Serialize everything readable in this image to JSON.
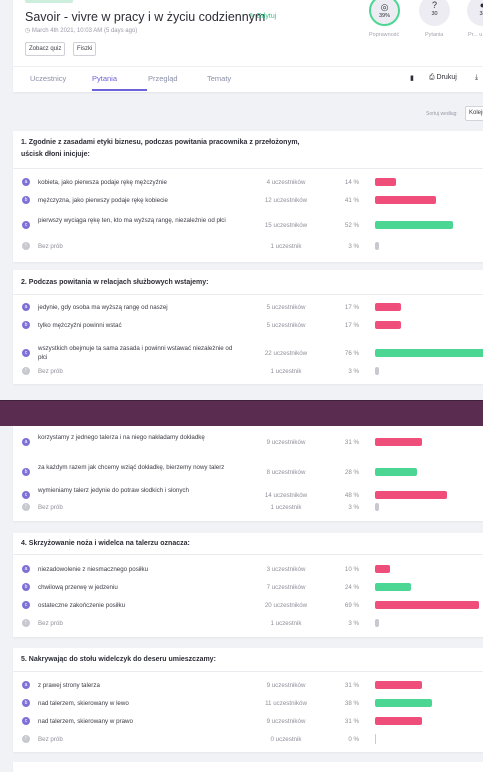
{
  "header": {
    "title": "Savoir - vivre w pracy i w życiu codziennym",
    "edit_label": "✎ Edytuj",
    "date": "March 4th 2021, 10:03 AM (5 days ago)",
    "quiz_button": "Zobacz quiz",
    "flashcards_button": "Fiszki",
    "stats": [
      {
        "icon": "target-icon",
        "glyph": "◎",
        "value": "39%",
        "label": "Poprawność"
      },
      {
        "icon": "question-icon",
        "glyph": "?",
        "value": "30",
        "label": "Pytania"
      },
      {
        "icon": "people-icon",
        "glyph": "●",
        "value": "38",
        "label": "Pr... uczes..."
      }
    ],
    "progress_ring_color": "#4cd694"
  },
  "tabs": [
    {
      "label": "Uczestnicy"
    },
    {
      "label": "Pytania"
    },
    {
      "label": "Przegląd"
    },
    {
      "label": "Tematy"
    }
  ],
  "active_tab": "Pytania",
  "tools": {
    "delete_icon": "trash-icon",
    "print_label": "Drukuj",
    "download_icon": "download-icon"
  },
  "sort": {
    "label": "Sortuj według:",
    "value": "Kolejn"
  },
  "colors": {
    "accent": "#6c63d8",
    "wrong": "#ef4e7b",
    "correct": "#4cd694",
    "none": "#c8c8d0"
  },
  "questions": [
    {
      "title": "1. Zgodnie z zasadami etyki biznesu, podczas powitania pracownika z przełożonym, uścisk dłoni inicjuje:",
      "answers": [
        {
          "letter": "a",
          "text": "kobieta, jako pierwsza podaje rękę mężczyźnie",
          "count": "4 uczestników",
          "pct": "14 %",
          "value": 14,
          "correct": false
        },
        {
          "letter": "b",
          "text": "mężczyzna, jako pierwszy podaje rękę kobiecie",
          "count": "12 uczestników",
          "pct": "41 %",
          "value": 41,
          "correct": false
        },
        {
          "letter": "c",
          "text": "pierwszy wyciąga rękę ten, kto ma wyższą rangę, niezależnie od płci",
          "count": "15 uczestników",
          "pct": "52 %",
          "value": 52,
          "correct": true
        },
        {
          "letter": "!",
          "text": "Bez prób",
          "count": "1 uczestnik",
          "pct": "3 %",
          "value": 3,
          "none": true
        }
      ]
    },
    {
      "title": "2. Podczas powitania w relacjach służbowych wstajemy:",
      "answers": [
        {
          "letter": "a",
          "text": "jedynie, gdy osoba ma wyższą rangę od naszej",
          "count": "5 uczestników",
          "pct": "17 %",
          "value": 17,
          "correct": false
        },
        {
          "letter": "b",
          "text": "tylko mężczyźni powinni wstać",
          "count": "5 uczestników",
          "pct": "17 %",
          "value": 17,
          "correct": false
        },
        {
          "letter": "c",
          "text": "wszystkich obejmuje ta sama zasada i powinni wstawać niezależnie od płci",
          "count": "22 uczestników",
          "pct": "76 %",
          "value": 76,
          "correct": true
        },
        {
          "letter": "!",
          "text": "Bez prób",
          "count": "1 uczestnik",
          "pct": "3 %",
          "value": 3,
          "none": true
        }
      ]
    },
    {
      "title": "",
      "answers": [
        {
          "letter": "a",
          "text": "korzystamy z jednego talerza i na niego nakładamy dokładkę",
          "count": "9 uczestników",
          "pct": "31 %",
          "value": 31,
          "correct": false
        },
        {
          "letter": "b",
          "text": "za każdym razem jak chcemy wziąć dokładkę, bierzemy nowy talerz",
          "count": "8 uczestników",
          "pct": "28 %",
          "value": 28,
          "correct": true
        },
        {
          "letter": "c",
          "text": "wymieniamy talerz jedynie do potraw słodkich i słonych",
          "count": "14 uczestników",
          "pct": "48 %",
          "value": 48,
          "correct": false
        },
        {
          "letter": "!",
          "text": "Bez prób",
          "count": "1 uczestnik",
          "pct": "3 %",
          "value": 3,
          "none": true
        }
      ]
    },
    {
      "title": "4. Skrzyżowanie noża i widelca na talerzu oznacza:",
      "answers": [
        {
          "letter": "a",
          "text": "niezadowolenie z niesmacznego posiłku",
          "count": "3 uczestników",
          "pct": "10 %",
          "value": 10,
          "correct": false
        },
        {
          "letter": "b",
          "text": "chwilową przerwę w jedzeniu",
          "count": "7 uczestników",
          "pct": "24 %",
          "value": 24,
          "correct": true
        },
        {
          "letter": "c",
          "text": "ostateczne zakończenie posiłku",
          "count": "20 uczestników",
          "pct": "69 %",
          "value": 69,
          "correct": false
        },
        {
          "letter": "!",
          "text": "Bez prób",
          "count": "1 uczestnik",
          "pct": "3 %",
          "value": 3,
          "none": true
        }
      ]
    },
    {
      "title": "5. Nakrywając do stołu widelczyk do deseru umieszczamy:",
      "answers": [
        {
          "letter": "a",
          "text": "z prawej strony talerza",
          "count": "9 uczestników",
          "pct": "31 %",
          "value": 31,
          "correct": false
        },
        {
          "letter": "b",
          "text": "nad talerzem, skierowany w lewo",
          "count": "11 uczestników",
          "pct": "38 %",
          "value": 38,
          "correct": true
        },
        {
          "letter": "c",
          "text": "nad talerzem, skierowany w prawo",
          "count": "9 uczestników",
          "pct": "31 %",
          "value": 31,
          "correct": false
        },
        {
          "letter": "!",
          "text": "Bez prób",
          "count": "0 uczestnik",
          "pct": "0 %",
          "value": 0,
          "none": true
        }
      ]
    }
  ]
}
